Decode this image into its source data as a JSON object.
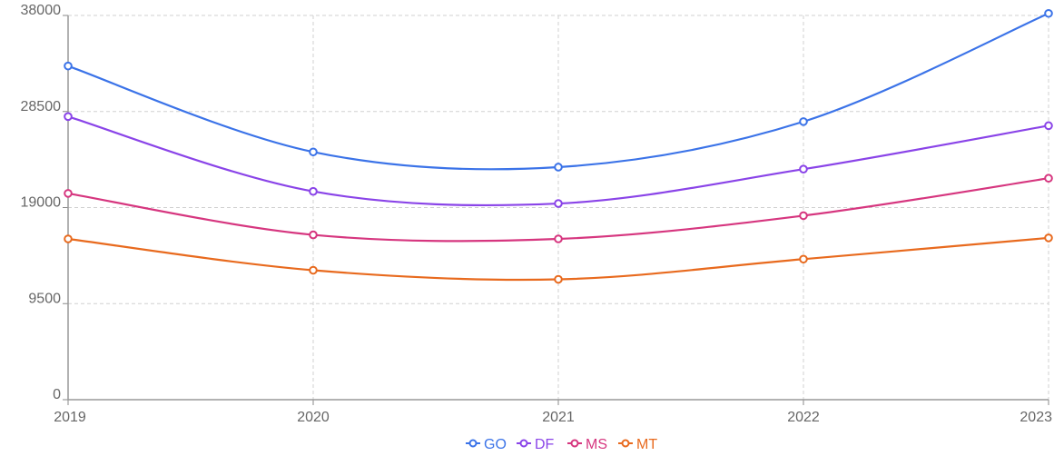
{
  "chart_data": {
    "type": "line",
    "title": "",
    "xlabel": "",
    "ylabel": "",
    "categories": [
      "2019",
      "2020",
      "2021",
      "2022",
      "2023"
    ],
    "yticks": [
      0,
      9500,
      19000,
      28500,
      38000
    ],
    "ylim": [
      0,
      38000
    ],
    "grid": true,
    "legend_position": "bottom-center",
    "series": [
      {
        "name": "GO",
        "color": "#3b73e8",
        "values": [
          33000,
          24500,
          23000,
          27500,
          38200
        ]
      },
      {
        "name": "DF",
        "color": "#8a44e8",
        "values": [
          28000,
          20600,
          19400,
          22800,
          27100
        ]
      },
      {
        "name": "MS",
        "color": "#d6367f",
        "values": [
          20400,
          16300,
          15900,
          18200,
          21900
        ]
      },
      {
        "name": "MT",
        "color": "#e86a1e",
        "values": [
          15900,
          12800,
          11900,
          13900,
          16000
        ]
      }
    ]
  }
}
